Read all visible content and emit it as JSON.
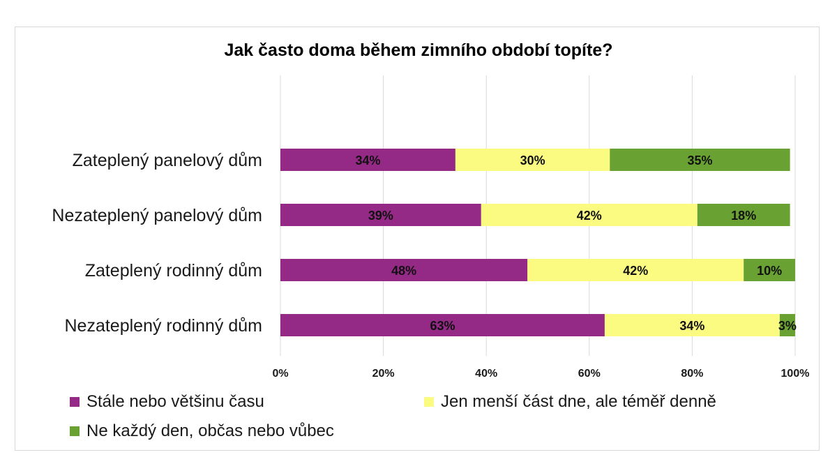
{
  "chart_data": {
    "type": "bar",
    "orientation": "horizontal",
    "stacked": "percent",
    "title": "Jak často doma během zimního období topíte?",
    "categories": [
      "Zateplený panelový dům",
      "Nezateplený panelový dům",
      "Zateplený rodinný dům",
      "Nezateplený rodinný dům"
    ],
    "series": [
      {
        "name": "Stále nebo většinu času",
        "color": "#952986",
        "values": [
          34,
          39,
          48,
          63
        ]
      },
      {
        "name": "Jen menší část dne, ale téměř denně",
        "color": "#fbfb82",
        "values": [
          30,
          42,
          42,
          34
        ]
      },
      {
        "name": "Ne každý den, občas nebo vůbec",
        "color": "#69a232",
        "values": [
          35,
          18,
          10,
          3
        ]
      }
    ],
    "data_labels": [
      [
        "34%",
        "39%",
        "48%",
        "63%"
      ],
      [
        "30%",
        "42%",
        "42%",
        "34%"
      ],
      [
        "35%",
        "18%",
        "10%",
        "3%"
      ]
    ],
    "xlim": [
      0,
      100
    ],
    "xticks": [
      0,
      20,
      40,
      60,
      80,
      100
    ],
    "xtick_labels": [
      "0%",
      "20%",
      "40%",
      "60%",
      "80%",
      "100%"
    ],
    "grid": true,
    "legend_position": "bottom"
  }
}
